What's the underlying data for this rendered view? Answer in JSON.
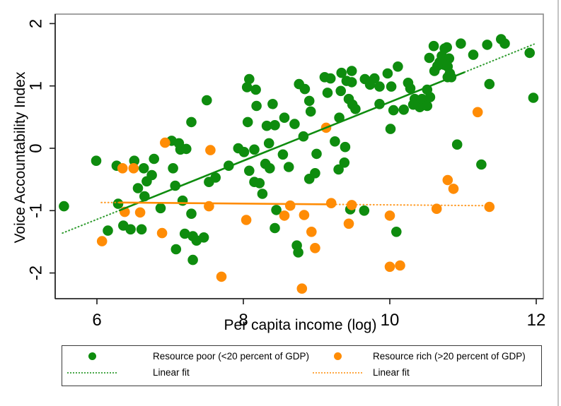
{
  "window": {
    "background": "#ffffff",
    "edge_color": "#c4c4c4"
  },
  "chart_data": {
    "type": "scatter",
    "title": "",
    "xlabel": "Per capita income (log)",
    "ylabel": "Voice Accountability Index",
    "xlim": [
      5.43,
      12.1
    ],
    "ylim": [
      -2.41,
      2.15
    ],
    "xticks": [
      6,
      8,
      10,
      12
    ],
    "yticks": [
      -2,
      -1,
      0,
      1,
      2
    ],
    "grid": false,
    "legend_position": "bottom",
    "colors": {
      "poor": "#0e8c0e",
      "rich": "#ff8c05",
      "frame": "#8c8c8c",
      "axis": "#1a1a1a"
    },
    "series": [
      {
        "name": "Resource poor (<20 percent of GDP)",
        "key": "poor",
        "marker": "circle",
        "points": [
          [
            5.55,
            -0.93
          ],
          [
            5.99,
            -0.2
          ],
          [
            6.27,
            -0.28
          ],
          [
            6.29,
            -0.89
          ],
          [
            6.15,
            -1.32
          ],
          [
            6.36,
            -1.24
          ],
          [
            6.46,
            -1.3
          ],
          [
            6.51,
            -0.2
          ],
          [
            6.64,
            -0.32
          ],
          [
            6.61,
            -1.3
          ],
          [
            6.78,
            -0.17
          ],
          [
            6.68,
            -0.53
          ],
          [
            6.75,
            -0.43
          ],
          [
            6.56,
            -0.64
          ],
          [
            6.65,
            -0.77
          ],
          [
            6.87,
            -0.96
          ],
          [
            7.04,
            -0.32
          ],
          [
            7.07,
            -0.6
          ],
          [
            7.17,
            -0.84
          ],
          [
            7.2,
            -1.37
          ],
          [
            7.08,
            -1.62
          ],
          [
            7.31,
            -1.41
          ],
          [
            7.36,
            -1.48
          ],
          [
            7.46,
            -1.43
          ],
          [
            7.31,
            -1.79
          ],
          [
            7.29,
            -1.05
          ],
          [
            7.53,
            -0.54
          ],
          [
            7.62,
            -0.47
          ],
          [
            7.8,
            -0.28
          ],
          [
            7.93,
            0.0
          ],
          [
            8.01,
            -0.06
          ],
          [
            8.15,
            -0.02
          ],
          [
            8.08,
            -0.36
          ],
          [
            8.15,
            -0.54
          ],
          [
            8.22,
            -0.56
          ],
          [
            8.3,
            -0.25
          ],
          [
            8.26,
            -0.73
          ],
          [
            8.36,
            -0.32
          ],
          [
            8.45,
            -0.99
          ],
          [
            8.43,
            -1.28
          ],
          [
            8.54,
            -0.1
          ],
          [
            8.62,
            -0.3
          ],
          [
            8.73,
            -1.56
          ],
          [
            8.75,
            -1.67
          ],
          [
            7.02,
            0.12
          ],
          [
            7.12,
            0.08
          ],
          [
            7.14,
            -0.02
          ],
          [
            7.22,
            -0.01
          ],
          [
            7.29,
            0.42
          ],
          [
            7.5,
            0.77
          ],
          [
            8.06,
            0.42
          ],
          [
            8.08,
            1.11
          ],
          [
            8.05,
            0.98
          ],
          [
            8.17,
            0.94
          ],
          [
            8.18,
            0.68
          ],
          [
            8.4,
            0.71
          ],
          [
            8.32,
            0.36
          ],
          [
            8.43,
            0.37
          ],
          [
            8.56,
            0.49
          ],
          [
            8.7,
            0.39
          ],
          [
            8.35,
            0.08
          ],
          [
            8.82,
            0.19
          ],
          [
            8.76,
            1.03
          ],
          [
            8.84,
            0.95
          ],
          [
            8.9,
            0.76
          ],
          [
            8.92,
            0.59
          ],
          [
            9.11,
            1.14
          ],
          [
            9.19,
            1.12
          ],
          [
            9.15,
            0.89
          ],
          [
            9.34,
            1.21
          ],
          [
            9.41,
            1.08
          ],
          [
            9.48,
            1.06
          ],
          [
            9.31,
            0.49
          ],
          [
            9.44,
            0.79
          ],
          [
            9.49,
            0.7
          ],
          [
            9.53,
            0.63
          ],
          [
            9.66,
            1.11
          ],
          [
            9.73,
            1.02
          ],
          [
            9.79,
            1.12
          ],
          [
            9.86,
            0.99
          ],
          [
            9.97,
            1.2
          ],
          [
            10.02,
            0.99
          ],
          [
            10.11,
            1.31
          ],
          [
            10.25,
            1.05
          ],
          [
            10.28,
            0.96
          ],
          [
            10.34,
            0.79
          ],
          [
            10.41,
            0.66
          ],
          [
            10.44,
            0.79
          ],
          [
            10.51,
            0.68
          ],
          [
            10.6,
            1.64
          ],
          [
            10.78,
            1.62
          ],
          [
            10.97,
            1.68
          ],
          [
            10.75,
            1.6
          ],
          [
            10.54,
            1.45
          ],
          [
            10.71,
            1.48
          ],
          [
            10.81,
            1.44
          ],
          [
            10.68,
            1.38
          ],
          [
            10.74,
            1.34
          ],
          [
            10.65,
            1.32
          ],
          [
            10.79,
            1.31
          ],
          [
            10.61,
            1.24
          ],
          [
            10.82,
            1.2
          ],
          [
            10.79,
            1.14
          ],
          [
            10.84,
            1.14
          ],
          [
            11.14,
            1.5
          ],
          [
            11.33,
            1.66
          ],
          [
            11.52,
            1.75
          ],
          [
            11.57,
            1.68
          ],
          [
            11.91,
            1.53
          ],
          [
            11.36,
            1.03
          ],
          [
            11.96,
            0.81
          ],
          [
            10.51,
            0.94
          ],
          [
            10.55,
            0.82
          ],
          [
            9.33,
            0.92
          ],
          [
            9.48,
            1.24
          ],
          [
            9.86,
            0.71
          ],
          [
            10.05,
            0.61
          ],
          [
            10.19,
            0.62
          ],
          [
            10.32,
            0.7
          ],
          [
            10.01,
            0.31
          ],
          [
            10.92,
            0.06
          ],
          [
            11.25,
            -0.26
          ],
          [
            9.25,
            0.11
          ],
          [
            9.0,
            -0.09
          ],
          [
            9.39,
            0.02
          ],
          [
            8.9,
            -0.49
          ],
          [
            8.98,
            -0.4
          ],
          [
            9.38,
            -0.23
          ],
          [
            9.3,
            -0.34
          ],
          [
            9.65,
            -1.0
          ],
          [
            10.09,
            -1.34
          ],
          [
            9.46,
            -0.98
          ]
        ]
      },
      {
        "name": "Resource rich (>20 percent of GDP)",
        "key": "rich",
        "marker": "circle",
        "points": [
          [
            6.93,
            0.09
          ],
          [
            7.55,
            -0.03
          ],
          [
            6.35,
            -0.32
          ],
          [
            6.5,
            -0.32
          ],
          [
            6.38,
            -1.02
          ],
          [
            6.07,
            -1.49
          ],
          [
            6.59,
            -1.03
          ],
          [
            6.89,
            -1.36
          ],
          [
            7.53,
            -0.93
          ],
          [
            7.7,
            -2.06
          ],
          [
            8.04,
            -1.15
          ],
          [
            8.56,
            -1.08
          ],
          [
            8.64,
            -0.92
          ],
          [
            8.8,
            -2.25
          ],
          [
            8.83,
            -1.07
          ],
          [
            9.2,
            -0.88
          ],
          [
            9.48,
            -0.91
          ],
          [
            8.93,
            -1.34
          ],
          [
            9.44,
            -1.21
          ],
          [
            10.0,
            -1.08
          ],
          [
            10.64,
            -0.97
          ],
          [
            10.79,
            -0.51
          ],
          [
            10.87,
            -0.65
          ],
          [
            11.36,
            -0.94
          ],
          [
            8.98,
            -1.6
          ],
          [
            10.0,
            -1.9
          ],
          [
            10.14,
            -1.88
          ],
          [
            9.13,
            0.33
          ],
          [
            11.2,
            0.58
          ]
        ]
      }
    ],
    "fit_lines": [
      {
        "name": "Linear fit",
        "series_key": "poor",
        "segments": [
          {
            "x1": 5.53,
            "y1": -1.36,
            "x2": 6.3,
            "y2": -1.0,
            "style": "dotted"
          },
          {
            "x1": 6.3,
            "y1": -1.0,
            "x2": 11.02,
            "y2": 1.22,
            "style": "solid"
          },
          {
            "x1": 11.02,
            "y1": 1.22,
            "x2": 11.97,
            "y2": 1.67,
            "style": "dotted"
          }
        ]
      },
      {
        "name": "Linear fit",
        "series_key": "rich",
        "segments": [
          {
            "x1": 6.06,
            "y1": -0.87,
            "x2": 6.3,
            "y2": -0.87,
            "style": "dotted"
          },
          {
            "x1": 6.3,
            "y1": -0.87,
            "x2": 9.22,
            "y2": -0.9,
            "style": "solid"
          },
          {
            "x1": 9.22,
            "y1": -0.9,
            "x2": 11.27,
            "y2": -0.92,
            "style": "dotted"
          }
        ]
      }
    ],
    "legend": {
      "entries": [
        {
          "marker": "dot",
          "series_key": "poor",
          "label": "Resource poor (<20 percent of GDP)"
        },
        {
          "marker": "dotted-line",
          "series_key": "poor",
          "label": "Linear fit"
        },
        {
          "marker": "dot",
          "series_key": "rich",
          "label": "Resource rich (>20 percent of GDP)"
        },
        {
          "marker": "dotted-line",
          "series_key": "rich",
          "label": "Linear fit"
        }
      ]
    }
  }
}
